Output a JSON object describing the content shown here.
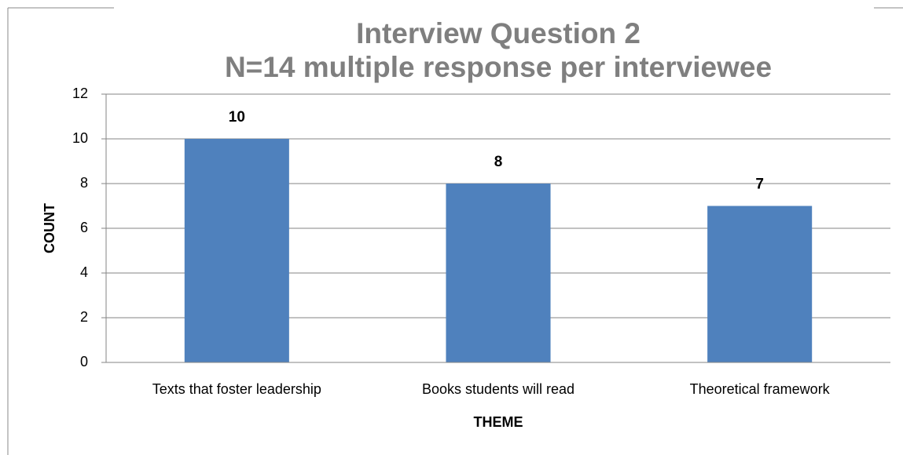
{
  "chart_data": {
    "type": "bar",
    "title": "Interview Question 2",
    "subtitle": "N=14 multiple response per interviewee",
    "x_label": "THEME",
    "y_label": "COUNT",
    "categories": [
      "Texts that foster leadership",
      "Books students will read",
      "Theoretical framework"
    ],
    "values": [
      10,
      8,
      7
    ],
    "color": "#4f81bd",
    "ylim": [
      0,
      12
    ],
    "yticks": [
      0,
      2,
      4,
      6,
      8,
      10,
      12
    ],
    "grid": true
  }
}
